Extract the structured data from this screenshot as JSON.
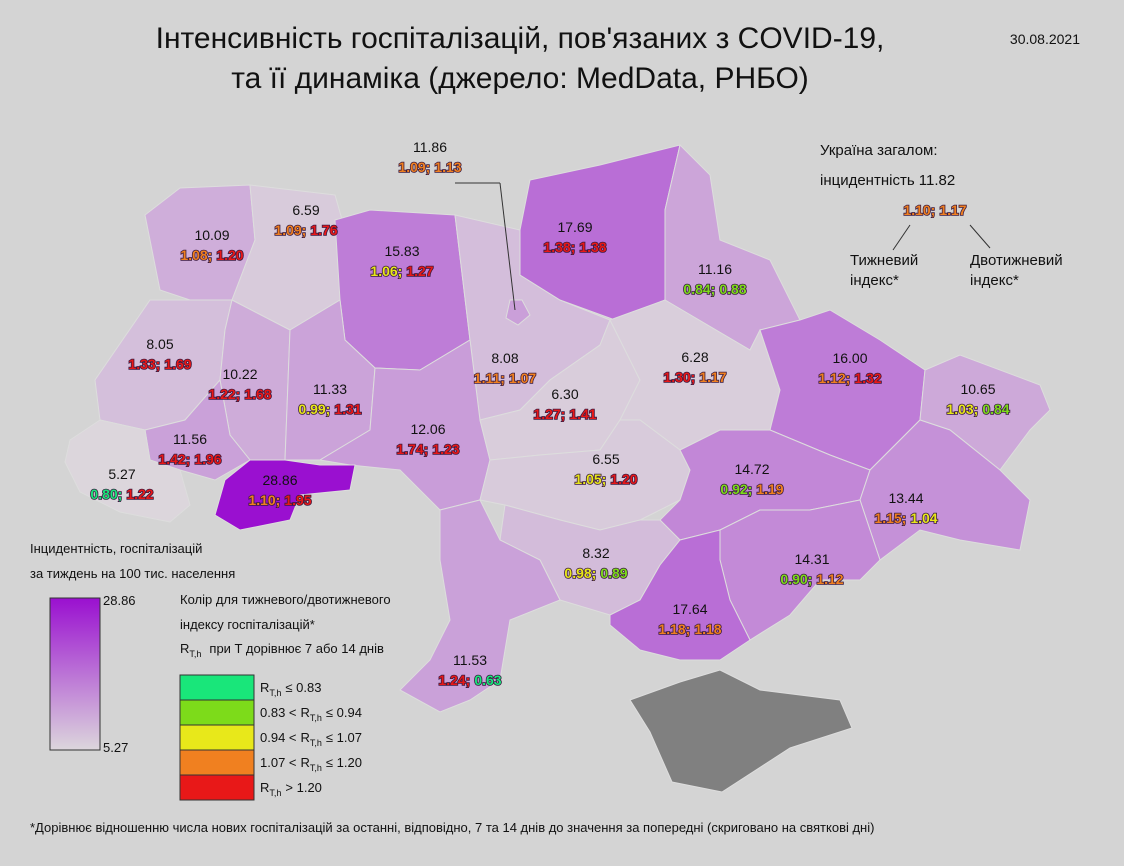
{
  "title": [
    "Інтенсивність госпіталізацій, пов'язаних з COVID-19,",
    "та її динаміка (джерело: MedData, РНБО)"
  ],
  "date": "30.08.2021",
  "separator": ";",
  "total": {
    "heading": "Україна загалом:",
    "incidence": "інцидентність 11.82",
    "weekly": "1.10",
    "biweekly": "1.17",
    "weekly_color": "#f08020",
    "biweekly_color": "#f08020",
    "weekly_label": [
      "Тижневий",
      "індекс*"
    ],
    "biweekly_label": [
      "Двотижневий",
      "індекс*"
    ]
  },
  "regions": [
    {
      "incidence": "10.09",
      "weekly": "1.08",
      "biweekly": "1.20",
      "weekly_color": "#f08020",
      "biweekly_color": "#e81818",
      "light": false
    },
    {
      "incidence": "6.59",
      "weekly": "1.09",
      "biweekly": "1.76",
      "weekly_color": "#f08020",
      "biweekly_color": "#e81818",
      "light": false
    },
    {
      "incidence": "15.83",
      "weekly": "1.06",
      "biweekly": "1.27",
      "weekly_color": "#e8e81a",
      "biweekly_color": "#e81818",
      "light": true
    },
    {
      "incidence": "8.08",
      "weekly": "1.11",
      "biweekly": "1.07",
      "weekly_color": "#f08020",
      "biweekly_color": "#f08020",
      "light": false
    },
    {
      "incidence": "17.69",
      "weekly": "1.38",
      "biweekly": "1.38",
      "weekly_color": "#e81818",
      "biweekly_color": "#e81818",
      "light": true
    },
    {
      "incidence": "11.16",
      "weekly": "0.84",
      "biweekly": "0.88",
      "weekly_color": "#7ddb1a",
      "biweekly_color": "#7ddb1a",
      "light": false
    },
    {
      "incidence": "8.05",
      "weekly": "1.33",
      "biweekly": "1.69",
      "weekly_color": "#e81818",
      "biweekly_color": "#e81818",
      "light": false
    },
    {
      "incidence": "10.22",
      "weekly": "1.22",
      "biweekly": "1.68",
      "weekly_color": "#e81818",
      "biweekly_color": "#e81818",
      "light": false
    },
    {
      "incidence": "11.33",
      "weekly": "0.99",
      "biweekly": "1.31",
      "weekly_color": "#e8e81a",
      "biweekly_color": "#e81818",
      "light": false
    },
    {
      "incidence": "12.06",
      "weekly": "1.74",
      "biweekly": "1.23",
      "weekly_color": "#e81818",
      "biweekly_color": "#e81818",
      "light": true
    },
    {
      "incidence": "6.30",
      "weekly": "1.27",
      "biweekly": "1.41",
      "weekly_color": "#e81818",
      "biweekly_color": "#e81818",
      "light": false
    },
    {
      "incidence": "6.28",
      "weekly": "1.30",
      "biweekly": "1.17",
      "weekly_color": "#e81818",
      "biweekly_color": "#f08020",
      "light": false
    },
    {
      "incidence": "16.00",
      "weekly": "1.12",
      "biweekly": "1.32",
      "weekly_color": "#f08020",
      "biweekly_color": "#e81818",
      "light": true
    },
    {
      "incidence": "10.65",
      "weekly": "1.03",
      "biweekly": "0.84",
      "weekly_color": "#e8e81a",
      "biweekly_color": "#7ddb1a",
      "light": false
    },
    {
      "incidence": "11.56",
      "weekly": "1.42",
      "biweekly": "1.96",
      "weekly_color": "#e81818",
      "biweekly_color": "#e81818",
      "light": false
    },
    {
      "incidence": "5.27",
      "weekly": "0.80",
      "biweekly": "1.22",
      "weekly_color": "#19e67a",
      "biweekly_color": "#e81818",
      "light": false
    },
    {
      "incidence": "28.86",
      "weekly": "1.10",
      "biweekly": "1.95",
      "weekly_color": "#f08020",
      "biweekly_color": "#e81818",
      "light": true
    },
    {
      "incidence": "6.55",
      "weekly": "1.05",
      "biweekly": "1.20",
      "weekly_color": "#e8e81a",
      "biweekly_color": "#e81818",
      "light": false
    },
    {
      "incidence": "14.72",
      "weekly": "0.92",
      "biweekly": "1.19",
      "weekly_color": "#7ddb1a",
      "biweekly_color": "#f08020",
      "light": true
    },
    {
      "incidence": "13.44",
      "weekly": "1.15",
      "biweekly": "1.04",
      "weekly_color": "#f08020",
      "biweekly_color": "#e8e81a",
      "light": true
    },
    {
      "incidence": "14.31",
      "weekly": "0.90",
      "biweekly": "1.12",
      "weekly_color": "#7ddb1a",
      "biweekly_color": "#f08020",
      "light": true
    },
    {
      "incidence": "8.32",
      "weekly": "0.98",
      "biweekly": "0.89",
      "weekly_color": "#e8e81a",
      "biweekly_color": "#7ddb1a",
      "light": false
    },
    {
      "incidence": "17.64",
      "weekly": "1.18",
      "biweekly": "1.18",
      "weekly_color": "#f08020",
      "biweekly_color": "#f08020",
      "light": true
    },
    {
      "incidence": "11.53",
      "weekly": "1.24",
      "biweekly": "0.63",
      "weekly_color": "#e81818",
      "biweekly_color": "#19e67a",
      "light": false
    },
    {
      "incidence": "11.86",
      "weekly": "1.09",
      "biweekly": "1.13",
      "weekly_color": "#f08020",
      "biweekly_color": "#f08020",
      "light": false
    }
  ],
  "scale": {
    "title": [
      "Інцидентність, госпіталізацій",
      "за тиждень на 100 тис. населення"
    ],
    "max": "28.86",
    "min": "5.27",
    "max_color": "#9a10d0",
    "min_color": "#dcd6dc"
  },
  "index_legend": {
    "title": [
      "Колір для тижневого/двотижневого",
      "індексу госпіталізацій*"
    ],
    "symbol": "R",
    "sub": "T,h",
    "note": "при T дорівнює 7 або 14 днів",
    "items": [
      {
        "pre": "",
        "post": "≤ 0.83",
        "color": "#19e67a"
      },
      {
        "pre": "0.83 <",
        "post": "≤ 0.94",
        "color": "#7ddb1a"
      },
      {
        "pre": "0.94 <",
        "post": "≤ 1.07",
        "color": "#e8e81a"
      },
      {
        "pre": "1.07 <",
        "post": "≤ 1.20",
        "color": "#f08020"
      },
      {
        "pre": "",
        "post": "> 1.20",
        "color": "#e81818"
      }
    ]
  },
  "footnote": "*Дорівнює відношенню числа нових госпіталізацій за останні, відповідно, 7 та 14 днів до значення за попередні (скриговано на святкові дні)"
}
